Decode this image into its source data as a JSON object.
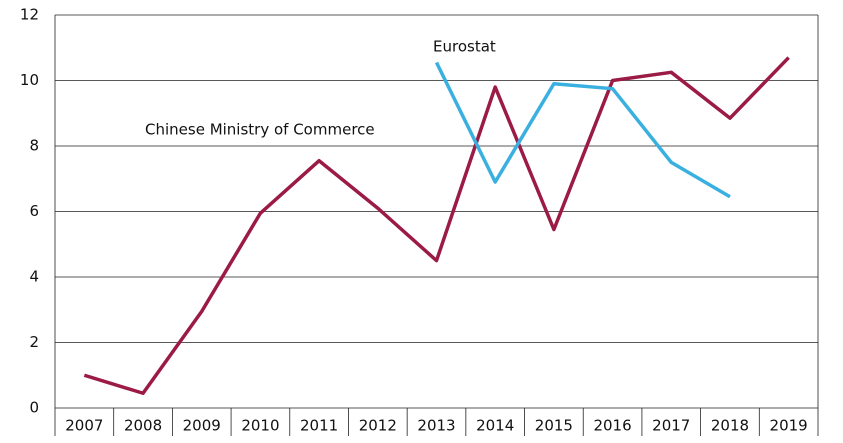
{
  "chart_data": {
    "type": "line",
    "categories": [
      "2007",
      "2008",
      "2009",
      "2010",
      "2011",
      "2012",
      "2013",
      "2014",
      "2015",
      "2016",
      "2017",
      "2018",
      "2019"
    ],
    "series": [
      {
        "name": "Chinese Ministry of Commerce",
        "color": "#9b1b45",
        "values": [
          1.0,
          0.45,
          2.95,
          5.95,
          7.55,
          6.1,
          4.5,
          9.8,
          5.45,
          10.0,
          10.25,
          8.85,
          10.7
        ]
      },
      {
        "name": "Eurostat",
        "color": "#3ab0e0",
        "values": [
          null,
          null,
          null,
          null,
          null,
          null,
          10.55,
          6.9,
          9.9,
          9.75,
          7.5,
          6.45,
          null
        ]
      }
    ],
    "ylim": [
      0,
      12
    ],
    "yticks": [
      0,
      2,
      4,
      6,
      8,
      10,
      12
    ],
    "grid": true
  }
}
